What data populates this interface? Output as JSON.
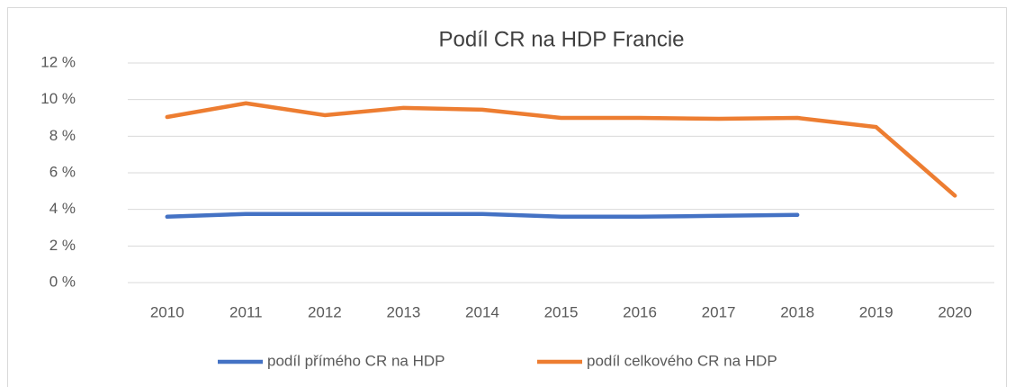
{
  "chart_data": {
    "type": "line",
    "title": "Podíl CR na HDP Francie",
    "categories": [
      "2010",
      "2011",
      "2012",
      "2013",
      "2014",
      "2015",
      "2016",
      "2017",
      "2018",
      "2019",
      "2020"
    ],
    "series": [
      {
        "name": "podíl přímého CR na HDP",
        "color": "#4472c4",
        "values": [
          3.6,
          3.75,
          3.75,
          3.75,
          3.75,
          3.6,
          3.6,
          3.65,
          3.7,
          null,
          null
        ]
      },
      {
        "name": "podíl celkového CR na HDP",
        "color": "#ed7d31",
        "values": [
          9.05,
          9.8,
          9.15,
          9.55,
          9.45,
          9.0,
          9.0,
          8.95,
          9.0,
          8.5,
          4.75
        ]
      }
    ],
    "ylim": [
      0,
      12
    ],
    "yticks": [
      {
        "value": 0,
        "label": "0 %"
      },
      {
        "value": 2,
        "label": "2 %"
      },
      {
        "value": 4,
        "label": "4 %"
      },
      {
        "value": 6,
        "label": "6 %"
      },
      {
        "value": 8,
        "label": "8 %"
      },
      {
        "value": 10,
        "label": "10 %"
      },
      {
        "value": 12,
        "label": "12 %"
      }
    ],
    "grid": true,
    "legend": "bottom"
  }
}
